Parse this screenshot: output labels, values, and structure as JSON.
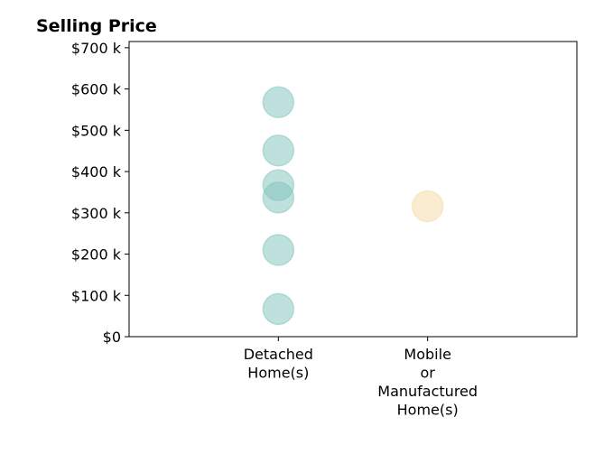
{
  "chart_data": {
    "type": "scatter",
    "title": "Selling Price",
    "xlabel": "",
    "ylabel": "",
    "categories": [
      "Detached Home(s)",
      "Mobile or Manufactured Home(s)"
    ],
    "category_label_lines": [
      [
        "Detached",
        "Home(s)"
      ],
      [
        "Mobile",
        "or",
        "Manufactured",
        "Home(s)"
      ]
    ],
    "series": [
      {
        "category": "Detached Home(s)",
        "color": "#80c4bc",
        "values": [
          568000,
          451000,
          367000,
          337000,
          210000,
          67000
        ]
      },
      {
        "category": "Mobile or Manufactured Home(s)",
        "color": "#f5daa3",
        "values": [
          316000
        ]
      }
    ],
    "ylim": [
      0,
      715000
    ],
    "y_ticks": [
      0,
      100000,
      200000,
      300000,
      400000,
      500000,
      600000,
      700000
    ],
    "y_tick_labels": [
      "$0",
      "$100 k",
      "$200 k",
      "$300 k",
      "$400 k",
      "$500 k",
      "$600 k",
      "$700 k"
    ],
    "grid": false,
    "legend": "none"
  }
}
